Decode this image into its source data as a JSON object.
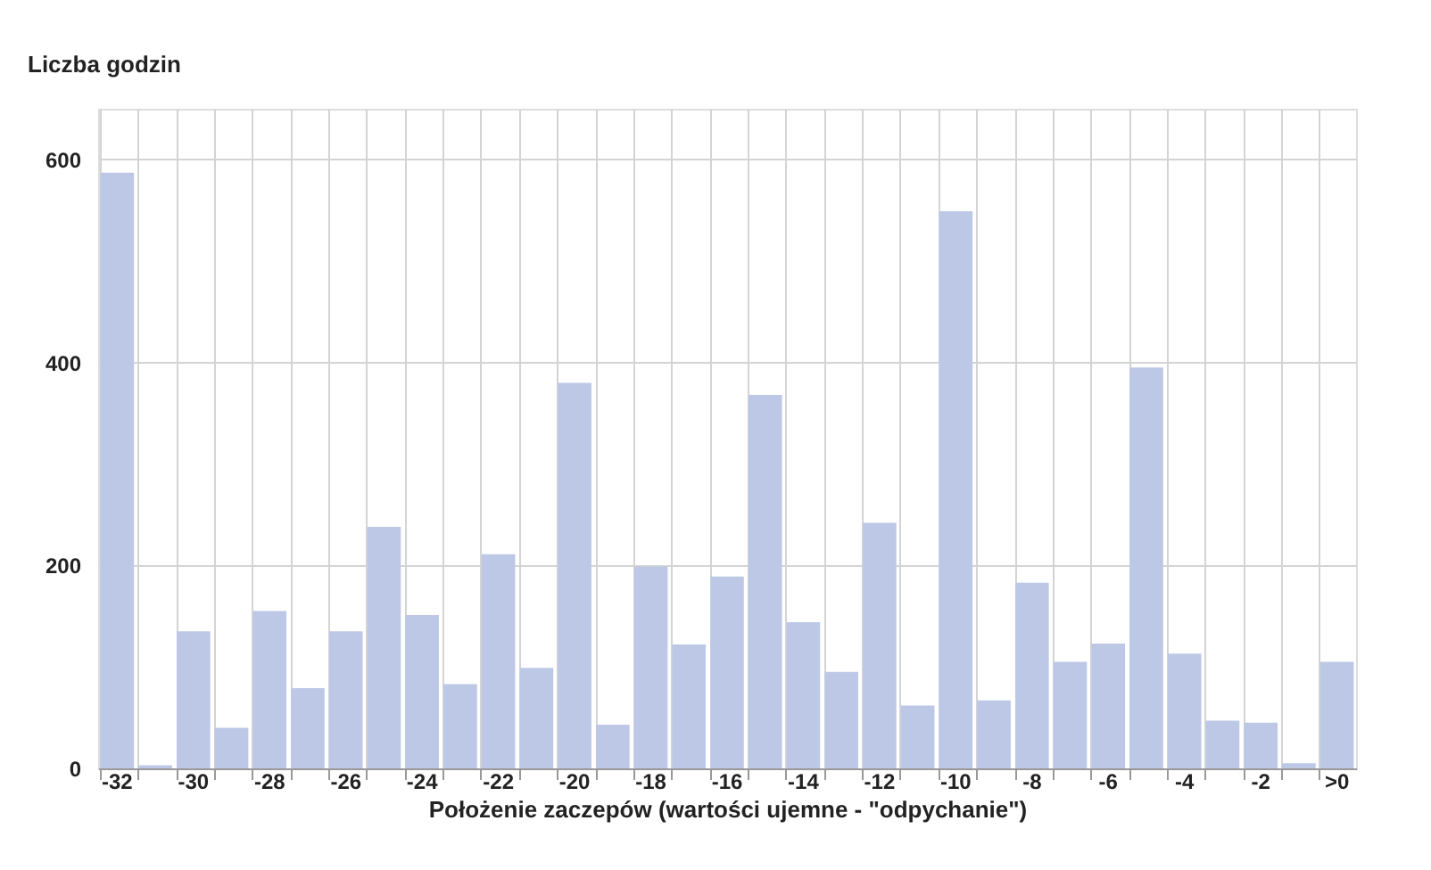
{
  "chart_data": {
    "type": "bar",
    "ylabel": "Liczba godzin",
    "xlabel": "Położenie zaczepów (wartości ujemne - \"odpychanie\")",
    "categories": [
      "-32",
      null,
      "-30",
      null,
      "-28",
      null,
      "-26",
      null,
      "-24",
      null,
      "-22",
      null,
      "-20",
      null,
      "-18",
      null,
      "-16",
      null,
      "-14",
      null,
      "-12",
      null,
      "-10",
      null,
      "-8",
      null,
      "-6",
      null,
      "-4",
      null,
      "-2",
      null,
      ">0"
    ],
    "values": [
      587,
      3,
      135,
      40,
      155,
      79,
      135,
      238,
      151,
      83,
      211,
      99,
      380,
      43,
      199,
      122,
      189,
      368,
      144,
      95,
      242,
      62,
      549,
      67,
      183,
      105,
      123,
      395,
      113,
      47,
      45,
      5,
      105
    ],
    "color": "#bcc8e6",
    "ylim": [
      0,
      650
    ],
    "yticks": [
      0,
      200,
      400,
      600
    ],
    "grid": true
  }
}
